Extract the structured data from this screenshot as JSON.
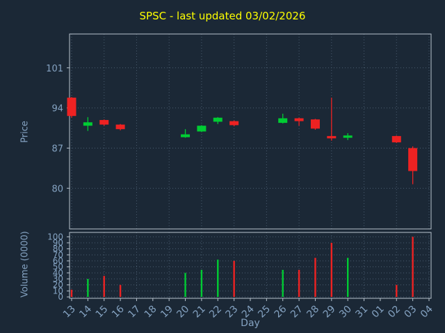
{
  "colors": {
    "background": "#1b2836",
    "title": "#ffff00",
    "label": "#85a3c2",
    "border": "#b9c5cf",
    "grid": "#4a5d70",
    "up": "#00cc33",
    "down": "#ee2222"
  },
  "axes": {
    "price_label": "Price",
    "volume_label": "Volume (0000)",
    "x_label": "Day",
    "price_ticks": [
      80,
      87,
      94,
      101
    ],
    "volume_ticks": [
      0,
      10,
      20,
      30,
      40,
      50,
      60,
      70,
      80,
      90,
      100
    ],
    "price_range": [
      72.9,
      106.9
    ],
    "volume_range": [
      0,
      105
    ]
  },
  "chart_data": {
    "type": "candlestick+volume-bar",
    "title": "SPSC - last updated 03/02/2026",
    "xlabel": "Day",
    "ylabel_price": "Price",
    "ylabel_volume": "Volume (0000)",
    "grid": "dotted",
    "days": [
      "13",
      "14",
      "15",
      "16",
      "17",
      "18",
      "19",
      "20",
      "21",
      "22",
      "23",
      "24",
      "25",
      "26",
      "27",
      "28",
      "29",
      "30",
      "31",
      "01",
      "02",
      "03",
      "04"
    ],
    "candles": [
      {
        "day": "13",
        "open": 95.8,
        "high": 95.9,
        "low": 92.3,
        "close": 92.6,
        "volume": 12
      },
      {
        "day": "14",
        "open": 90.9,
        "high": 92.4,
        "low": 90.0,
        "close": 91.5,
        "volume": 30
      },
      {
        "day": "15",
        "open": 91.9,
        "high": 92.0,
        "low": 90.9,
        "close": 91.1,
        "volume": 35
      },
      {
        "day": "16",
        "open": 91.1,
        "high": 91.2,
        "low": 90.1,
        "close": 90.3,
        "volume": 20
      },
      {
        "day": "20",
        "open": 88.9,
        "high": 90.3,
        "low": 88.8,
        "close": 89.4,
        "volume": 40
      },
      {
        "day": "21",
        "open": 89.9,
        "high": 91.0,
        "low": 89.8,
        "close": 90.9,
        "volume": 45
      },
      {
        "day": "22",
        "open": 91.6,
        "high": 92.4,
        "low": 91.2,
        "close": 92.3,
        "volume": 62
      },
      {
        "day": "23",
        "open": 91.7,
        "high": 91.8,
        "low": 90.8,
        "close": 91.0,
        "volume": 60
      },
      {
        "day": "26",
        "open": 91.4,
        "high": 93.0,
        "low": 91.3,
        "close": 92.2,
        "volume": 45
      },
      {
        "day": "27",
        "open": 92.2,
        "high": 92.3,
        "low": 90.9,
        "close": 91.7,
        "volume": 45
      },
      {
        "day": "28",
        "open": 92.0,
        "high": 92.1,
        "low": 90.2,
        "close": 90.4,
        "volume": 65
      },
      {
        "day": "29",
        "open": 89.1,
        "high": 95.8,
        "low": 88.3,
        "close": 88.7,
        "volume": 90
      },
      {
        "day": "30",
        "open": 88.8,
        "high": 89.6,
        "low": 88.4,
        "close": 89.2,
        "volume": 65
      },
      {
        "day": "02",
        "open": 89.1,
        "high": 89.2,
        "low": 87.9,
        "close": 88.0,
        "volume": 20
      },
      {
        "day": "03",
        "open": 87.0,
        "high": 87.3,
        "low": 80.7,
        "close": 83.0,
        "volume": 100
      }
    ]
  }
}
